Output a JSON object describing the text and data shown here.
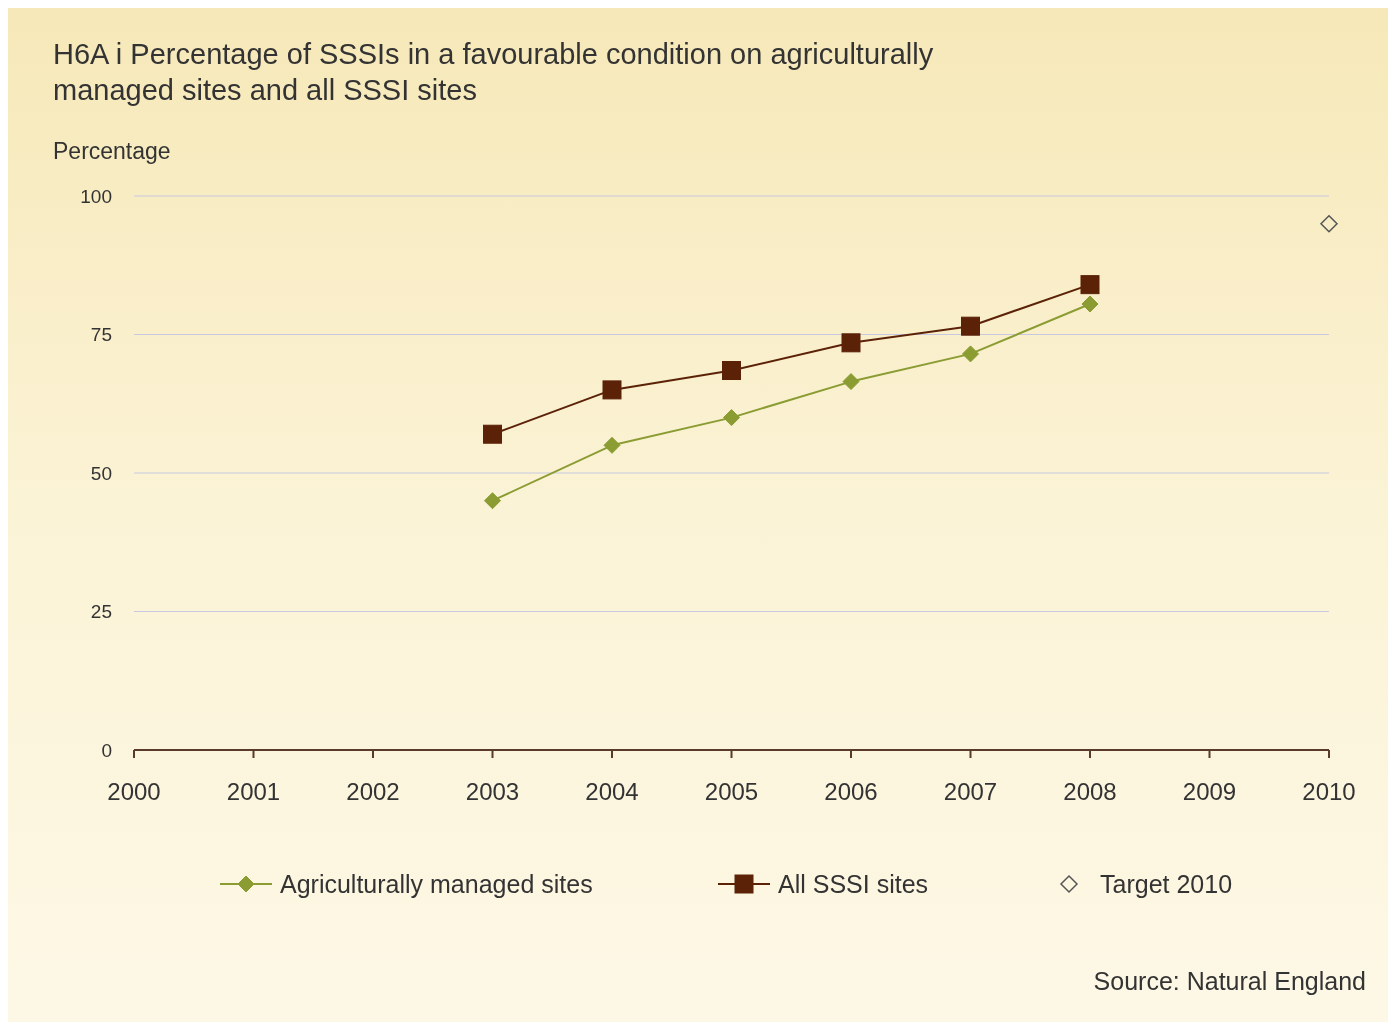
{
  "chart_data": {
    "type": "line",
    "title": "H6A i Percentage of SSSIs in a favourable condition on agriculturally managed sites and all SSSI sites",
    "ylabel": "Percentage",
    "x": [
      2003,
      2004,
      2005,
      2006,
      2007,
      2008
    ],
    "series": [
      {
        "name": "Agriculturally managed sites",
        "color": "#8a9c32",
        "marker": "diamond",
        "values": [
          45,
          55,
          60,
          66.5,
          71.5,
          80.5
        ]
      },
      {
        "name": "All SSSI sites",
        "color": "#5c2208",
        "marker": "square",
        "values": [
          57,
          65,
          68.5,
          73.5,
          76.5,
          84
        ]
      },
      {
        "name": "Target 2010",
        "type": "scatter",
        "color": "#555555",
        "marker": "diamond",
        "x": [
          2010
        ],
        "values": [
          95
        ]
      }
    ],
    "xlim": [
      2000,
      2010
    ],
    "xticks": [
      2000,
      2001,
      2002,
      2003,
      2004,
      2005,
      2006,
      2007,
      2008,
      2009,
      2010
    ],
    "ylim": [
      0,
      100
    ],
    "yticks": [
      0,
      25,
      50,
      75,
      100
    ],
    "grid": "y",
    "legend": "bottom",
    "annotations": [
      "Source: Natural England"
    ]
  }
}
